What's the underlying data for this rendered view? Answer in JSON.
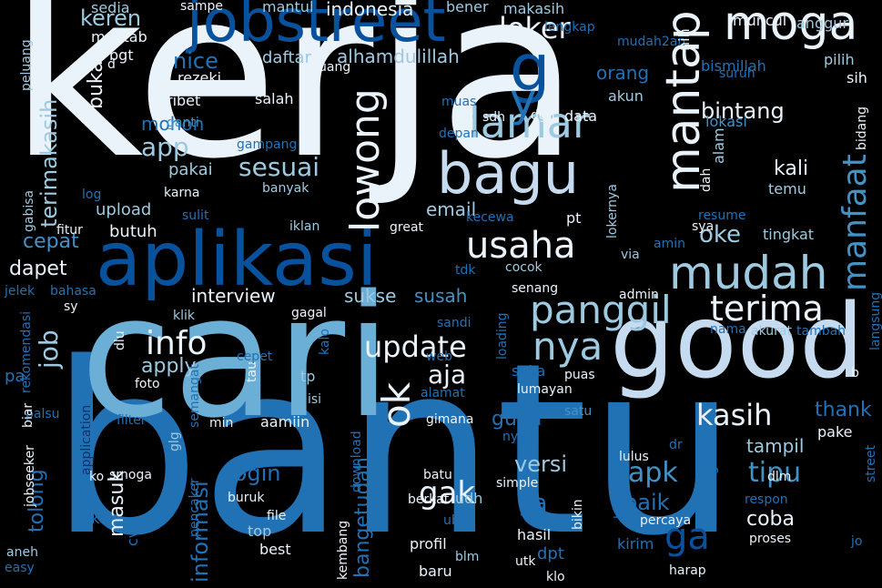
{
  "colors": {
    "background": "#000000",
    "white": "#EAF2FA",
    "pale": "#C6DBEF",
    "light": "#9ECAE1",
    "sky": "#6BAED6",
    "mid": "#4292C6",
    "blue": "#2171B5",
    "deep": "#08519C",
    "navy": "#08306B"
  },
  "words": [
    {
      "text": "kerja"
    },
    {
      "text": "bantu"
    },
    {
      "text": "cari"
    },
    {
      "text": "good"
    },
    {
      "text": "aplikasi"
    },
    {
      "text": "jobstreet"
    },
    {
      "text": "bagu"
    },
    {
      "text": "mantap"
    },
    {
      "text": "moga"
    },
    {
      "text": "lamar"
    },
    {
      "text": "mudah"
    },
    {
      "text": "lowong"
    },
    {
      "text": "usaha"
    },
    {
      "text": "panggil"
    },
    {
      "text": "terima"
    },
    {
      "text": "manfaat"
    },
    {
      "text": "ok"
    },
    {
      "text": "nya"
    },
    {
      "text": "info"
    },
    {
      "text": "update"
    },
    {
      "text": "kasih"
    },
    {
      "text": "loker"
    },
    {
      "text": "terimakasih"
    },
    {
      "text": "job"
    },
    {
      "text": "gak"
    },
    {
      "text": "tipu"
    },
    {
      "text": "ga"
    },
    {
      "text": "apk"
    },
    {
      "text": "sesuai"
    },
    {
      "text": "app"
    },
    {
      "text": "keren"
    },
    {
      "text": "nice"
    },
    {
      "text": "buka"
    },
    {
      "text": "bintang"
    },
    {
      "text": "cepat"
    },
    {
      "text": "dapet"
    },
    {
      "text": "email"
    },
    {
      "text": "oke"
    },
    {
      "text": "interview"
    },
    {
      "text": "apply"
    },
    {
      "text": "aja"
    },
    {
      "text": "sukse"
    },
    {
      "text": "susah"
    },
    {
      "text": "login"
    },
    {
      "text": "tolong"
    },
    {
      "text": "informasi"
    },
    {
      "text": "masuk"
    },
    {
      "text": "bangetudah"
    },
    {
      "text": "versi"
    },
    {
      "text": "ya"
    },
    {
      "text": "baik"
    },
    {
      "text": "thank"
    },
    {
      "text": "coba"
    },
    {
      "text": "guna"
    },
    {
      "text": "kali"
    },
    {
      "text": "tampil"
    },
    {
      "text": "indonesia"
    },
    {
      "text": "makasih"
    },
    {
      "text": "alhamdulillah"
    },
    {
      "text": "daftar"
    },
    {
      "text": "mohon"
    },
    {
      "text": "pakai"
    },
    {
      "text": "salah"
    },
    {
      "text": "upload"
    },
    {
      "text": "butuh"
    },
    {
      "text": "data"
    },
    {
      "text": "akun"
    },
    {
      "text": "orang"
    },
    {
      "text": "lengkap"
    },
    {
      "text": "mudah2an"
    },
    {
      "text": "bismillah"
    },
    {
      "text": "muncul"
    },
    {
      "text": "anggur"
    },
    {
      "text": "mantul"
    },
    {
      "text": "bener"
    },
    {
      "text": "sampe"
    },
    {
      "text": "sedia"
    },
    {
      "text": "mantab"
    },
    {
      "text": "bgt"
    },
    {
      "text": "rezeki"
    },
    {
      "text": "ribet"
    },
    {
      "text": "ganti"
    },
    {
      "text": "uang"
    },
    {
      "text": "muas"
    },
    {
      "text": "sdh"
    },
    {
      "text": "dgn"
    },
    {
      "text": "depan"
    },
    {
      "text": "lokasi"
    },
    {
      "text": "alam"
    },
    {
      "text": "dah"
    },
    {
      "text": "nih"
    },
    {
      "text": "temu"
    },
    {
      "text": "pilih"
    },
    {
      "text": "sih"
    },
    {
      "text": "suruh"
    },
    {
      "text": "bidang"
    },
    {
      "text": "gampang"
    },
    {
      "text": "banyak"
    },
    {
      "text": "karna"
    },
    {
      "text": "log"
    },
    {
      "text": "fitur"
    },
    {
      "text": "sulit"
    },
    {
      "text": "iklan"
    },
    {
      "text": "great"
    },
    {
      "text": "kecewa"
    },
    {
      "text": "lokernya"
    },
    {
      "text": "pt"
    },
    {
      "text": "resume"
    },
    {
      "text": "tingkat"
    },
    {
      "text": "amin"
    },
    {
      "text": "sya"
    },
    {
      "text": "via"
    },
    {
      "text": "cocok"
    },
    {
      "text": "tdk"
    },
    {
      "text": "senang"
    },
    {
      "text": "admin"
    },
    {
      "text": "sandi"
    },
    {
      "text": "loading"
    },
    {
      "text": "akurat"
    },
    {
      "text": "tambah"
    },
    {
      "text": "nama"
    },
    {
      "text": "langsung"
    },
    {
      "text": "klik"
    },
    {
      "text": "gagal"
    },
    {
      "text": "kalo"
    },
    {
      "text": "tp"
    },
    {
      "text": "tau"
    },
    {
      "text": "cepet"
    },
    {
      "text": "web"
    },
    {
      "text": "suka"
    },
    {
      "text": "puas"
    },
    {
      "text": "lumayan"
    },
    {
      "text": "satu"
    },
    {
      "text": "pake"
    },
    {
      "text": "b"
    },
    {
      "text": "alamat"
    },
    {
      "text": "isi"
    },
    {
      "text": "foto"
    },
    {
      "text": "semangat"
    },
    {
      "text": "filter"
    },
    {
      "text": "min"
    },
    {
      "text": "aamiin"
    },
    {
      "text": "gimana"
    },
    {
      "text": "nyari"
    },
    {
      "text": "dlu"
    },
    {
      "text": "application"
    },
    {
      "text": "palsu"
    },
    {
      "text": "biar"
    },
    {
      "text": "rekomendasi"
    },
    {
      "text": "pa"
    },
    {
      "text": "jelek"
    },
    {
      "text": "bahasa"
    },
    {
      "text": "sy"
    },
    {
      "text": "gabisa"
    },
    {
      "text": "peluang"
    },
    {
      "text": "glg"
    },
    {
      "text": "pencaker"
    },
    {
      "text": "download"
    },
    {
      "text": "smoga"
    },
    {
      "text": "ko"
    },
    {
      "text": "jobseeker"
    },
    {
      "text": "gk"
    },
    {
      "text": "aneh"
    },
    {
      "text": "easy"
    },
    {
      "text": "cv"
    },
    {
      "text": "buruk"
    },
    {
      "text": "top"
    },
    {
      "text": "best"
    },
    {
      "text": "file"
    },
    {
      "text": "kembang"
    },
    {
      "text": "batu"
    },
    {
      "text": "berkat"
    },
    {
      "text": "udh"
    },
    {
      "text": "profil"
    },
    {
      "text": "blm"
    },
    {
      "text": "baru"
    },
    {
      "text": "ubah"
    },
    {
      "text": "utk"
    },
    {
      "text": "simple"
    },
    {
      "text": "hasil"
    },
    {
      "text": "dpt"
    },
    {
      "text": "bikin"
    },
    {
      "text": "bodong"
    },
    {
      "text": "lulus"
    },
    {
      "text": "percaya"
    },
    {
      "text": "kirim"
    },
    {
      "text": "dr"
    },
    {
      "text": "nglamar"
    },
    {
      "text": "respon"
    },
    {
      "text": "dlm"
    },
    {
      "text": "street"
    },
    {
      "text": "proses"
    },
    {
      "text": "jo"
    },
    {
      "text": "klo"
    },
    {
      "text": "harap"
    },
    {
      "text": "g"
    },
    {
      "text": "y"
    },
    {
      "text": "d"
    }
  ]
}
